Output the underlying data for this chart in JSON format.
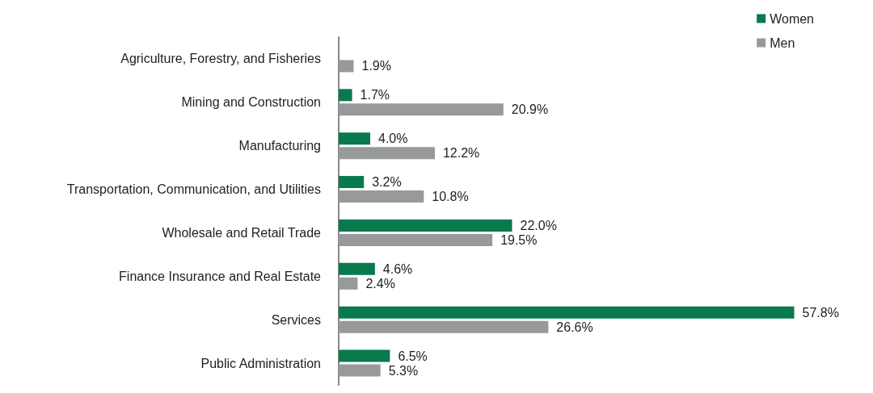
{
  "chart_data": {
    "type": "bar",
    "orientation": "horizontal",
    "tick_labels": "y",
    "legend": "top right",
    "categories": [
      "Agriculture, Forestry, and Fisheries",
      "Mining and Construction",
      "Manufacturing",
      "Transportation, Communication, and Utilities",
      "Wholesale and Retail Trade",
      "Finance Insurance and Real Estate",
      "Services",
      "Public Administration"
    ],
    "series": [
      {
        "name": "Women",
        "color": "#087a4e",
        "values": [
          null,
          1.7,
          4.0,
          3.2,
          22.0,
          4.6,
          57.8,
          6.5
        ],
        "value_labels": [
          null,
          "1.7%",
          "4.0%",
          "3.2%",
          "22.0%",
          "4.6%",
          "57.8%",
          "6.5%"
        ]
      },
      {
        "name": "Men",
        "color": "#97999b",
        "values": [
          1.9,
          20.9,
          12.2,
          10.8,
          19.5,
          2.4,
          26.6,
          5.3
        ],
        "value_labels": [
          "1.9%",
          "20.9%",
          "12.2%",
          "10.8%",
          "19.5%",
          "2.4%",
          "26.6%",
          "5.3%"
        ]
      }
    ]
  }
}
